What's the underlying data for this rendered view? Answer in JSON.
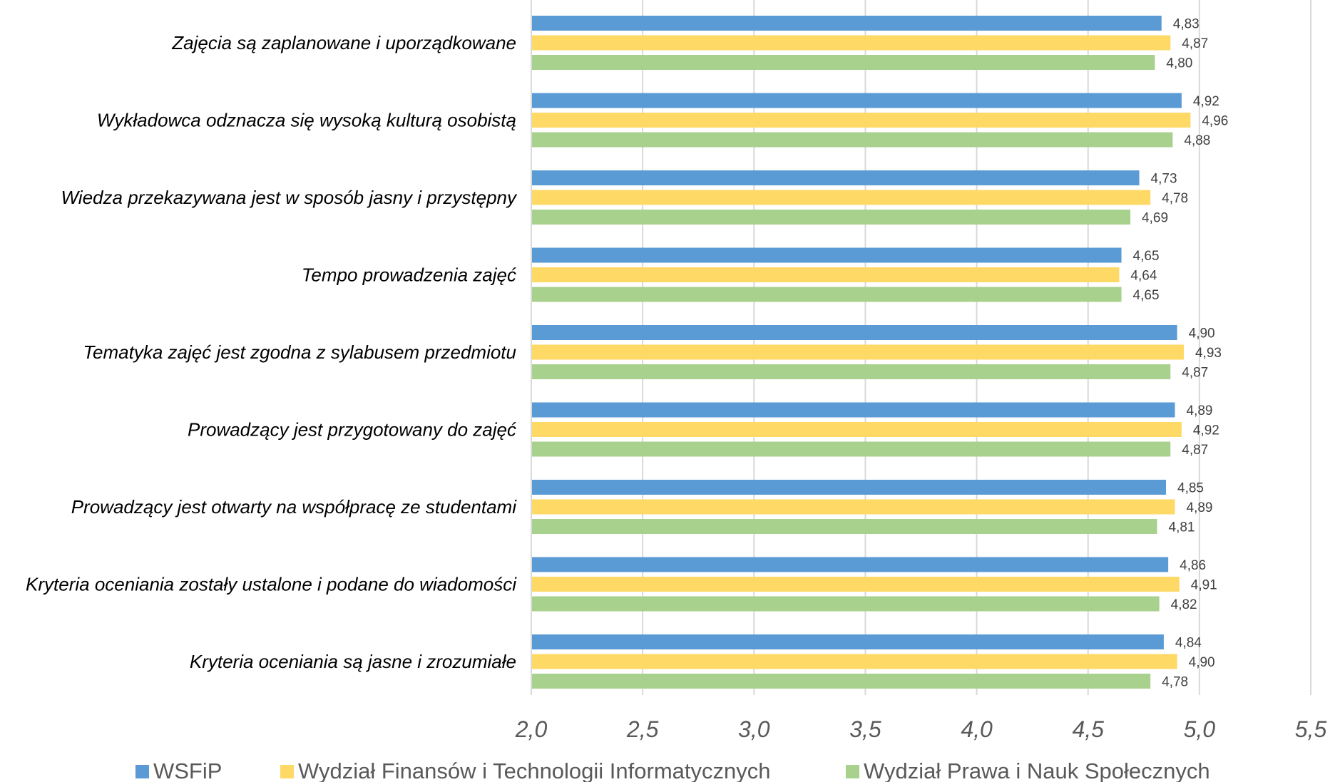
{
  "chart_data": {
    "type": "bar",
    "orientation": "horizontal",
    "categories": [
      "Zajęcia są zaplanowane i uporządkowane",
      "Wykładowca odznacza się wysoką kulturą osobistą",
      "Wiedza przekazywana jest w sposób jasny i przystępny",
      "Tempo prowadzenia zajęć",
      "Tematyka zajęć jest zgodna z sylabusem przedmiotu",
      "Prowadzący jest przygotowany do zajęć",
      "Prowadzący jest otwarty na współpracę ze studentami",
      "Kryteria oceniania zostały ustalone i podane do wiadomości",
      "Kryteria oceniania są jasne i zrozumiałe"
    ],
    "series": [
      {
        "name": "WSFiP",
        "color": "#5B9BD5",
        "values": [
          4.83,
          4.92,
          4.73,
          4.65,
          4.9,
          4.89,
          4.85,
          4.86,
          4.84
        ],
        "labels": [
          "4,83",
          "4,92",
          "4,73",
          "4,65",
          "4,90",
          "4,89",
          "4,85",
          "4,86",
          "4,84"
        ]
      },
      {
        "name": "Wydział Finansów i Technologii Informatycznych",
        "color": "#FFD966",
        "values": [
          4.87,
          4.96,
          4.78,
          4.64,
          4.93,
          4.92,
          4.89,
          4.91,
          4.9
        ],
        "labels": [
          "4,87",
          "4,96",
          "4,78",
          "4,64",
          "4,93",
          "4,92",
          "4,89",
          "4,91",
          "4,90"
        ]
      },
      {
        "name": "Wydział Prawa i Nauk Społecznych",
        "color": "#A9D18E",
        "values": [
          4.8,
          4.88,
          4.69,
          4.65,
          4.87,
          4.87,
          4.81,
          4.82,
          4.78
        ],
        "labels": [
          "4,80",
          "4,88",
          "4,69",
          "4,65",
          "4,87",
          "4,87",
          "4,81",
          "4,82",
          "4,78"
        ]
      }
    ],
    "xlim": [
      2.0,
      5.5
    ],
    "xticks": [
      2.0,
      2.5,
      3.0,
      3.5,
      4.0,
      4.5,
      5.0,
      5.5
    ],
    "xtick_labels": [
      "2,0",
      "2,5",
      "3,0",
      "3,5",
      "4,0",
      "4,5",
      "5,0",
      "5,5"
    ],
    "grid": true,
    "legend_position": "bottom",
    "title": "",
    "xlabel": "",
    "ylabel": ""
  }
}
